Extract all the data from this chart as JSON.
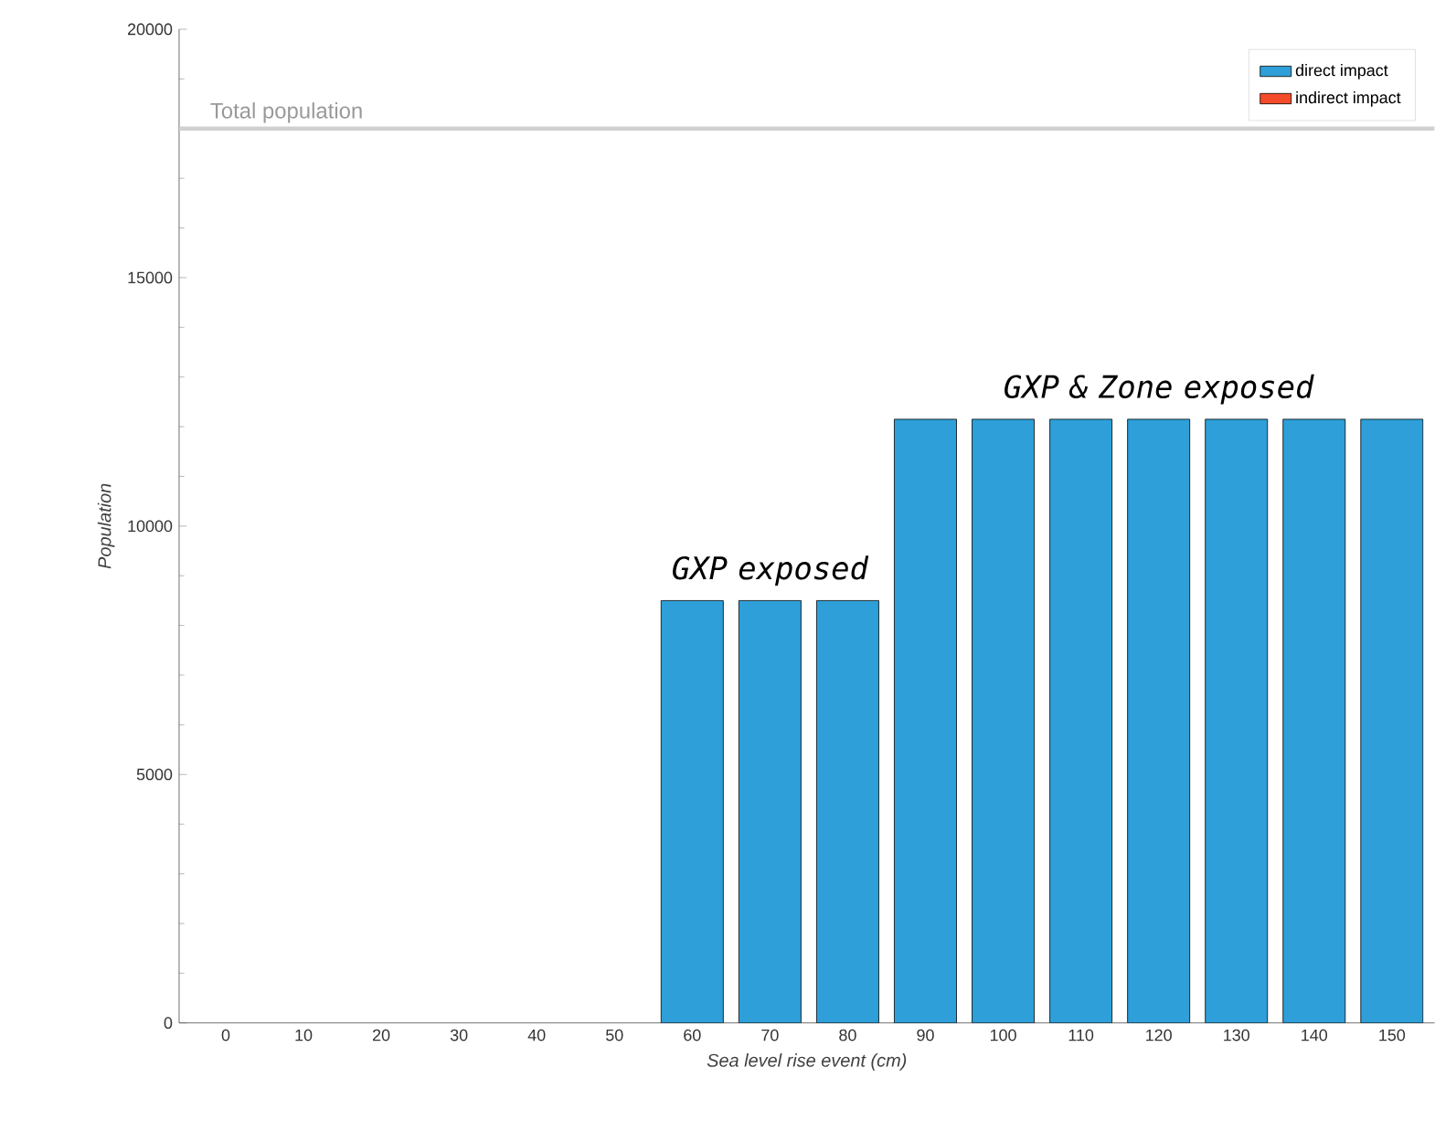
{
  "chart_data": {
    "type": "bar",
    "stacked": true,
    "xlabel": "Sea level rise event (cm)",
    "ylabel": "Population",
    "categories": [
      "0",
      "10",
      "20",
      "30",
      "40",
      "50",
      "60",
      "70",
      "80",
      "90",
      "100",
      "110",
      "120",
      "130",
      "140",
      "150"
    ],
    "series": [
      {
        "name": "direct impact",
        "color": "#2e9fd8",
        "values": [
          0,
          0,
          0,
          0,
          0,
          0,
          8500,
          8500,
          8500,
          12150,
          12150,
          12150,
          12150,
          12150,
          12150,
          12150
        ]
      },
      {
        "name": "indirect impact",
        "color": "#f44b2a",
        "values": [
          0,
          0,
          0,
          0,
          0,
          0,
          0,
          0,
          0,
          0,
          0,
          0,
          0,
          0,
          0,
          0
        ]
      }
    ],
    "ylim": [
      0,
      20000
    ],
    "yticks": [
      0,
      5000,
      10000,
      15000,
      20000
    ],
    "grid": false,
    "legend": "top right",
    "ref_lines": [
      {
        "axis": "y",
        "value": 18000,
        "label": "Total population",
        "color": "#d0d0d0"
      }
    ],
    "annotations": [
      "GXP exposed",
      "GXP & Zone exposed"
    ]
  }
}
